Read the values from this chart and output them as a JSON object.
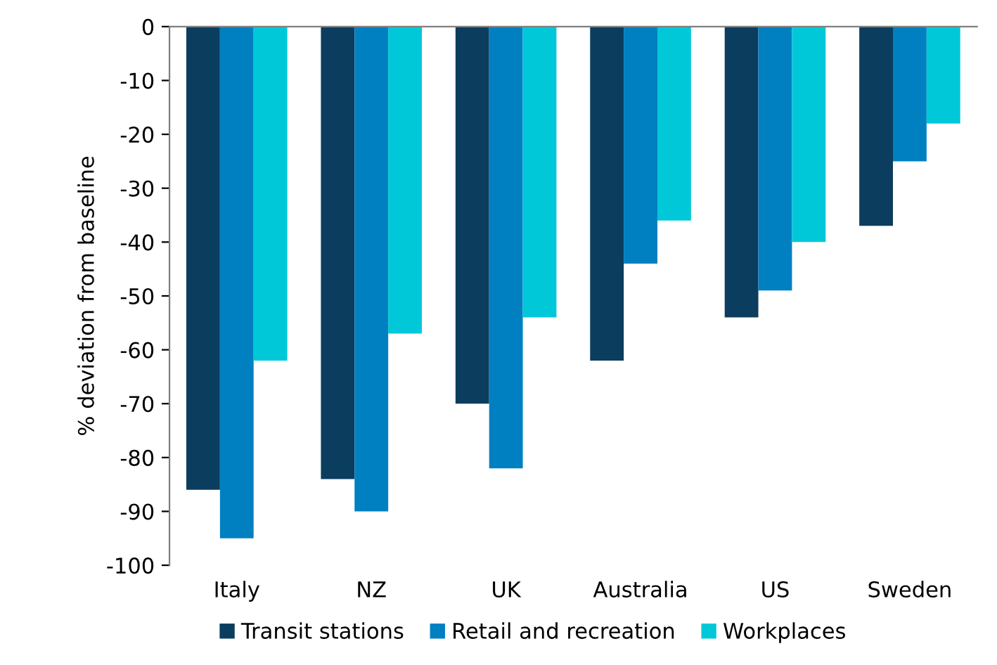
{
  "chart_data": {
    "type": "bar",
    "ylabel": "% deviation from baseline",
    "categories": [
      "Italy",
      "NZ",
      "UK",
      "Australia",
      "US",
      "Sweden"
    ],
    "series": [
      {
        "name": "Transit stations",
        "color": "#0b3d5e",
        "values": [
          -86,
          -84,
          -70,
          -62,
          -54,
          -37
        ]
      },
      {
        "name": "Retail and recreation",
        "color": "#0080c0",
        "values": [
          -95,
          -90,
          -82,
          -44,
          -49,
          -25
        ]
      },
      {
        "name": "Workplaces",
        "color": "#00c8d8",
        "values": [
          -62,
          -57,
          -54,
          -36,
          -40,
          -18
        ]
      }
    ],
    "ylim": [
      -100,
      0
    ],
    "yticks": [
      -100,
      -90,
      -80,
      -70,
      -60,
      -50,
      -40,
      -30,
      -20,
      -10,
      0
    ],
    "grid": false,
    "legend": "bottom"
  }
}
